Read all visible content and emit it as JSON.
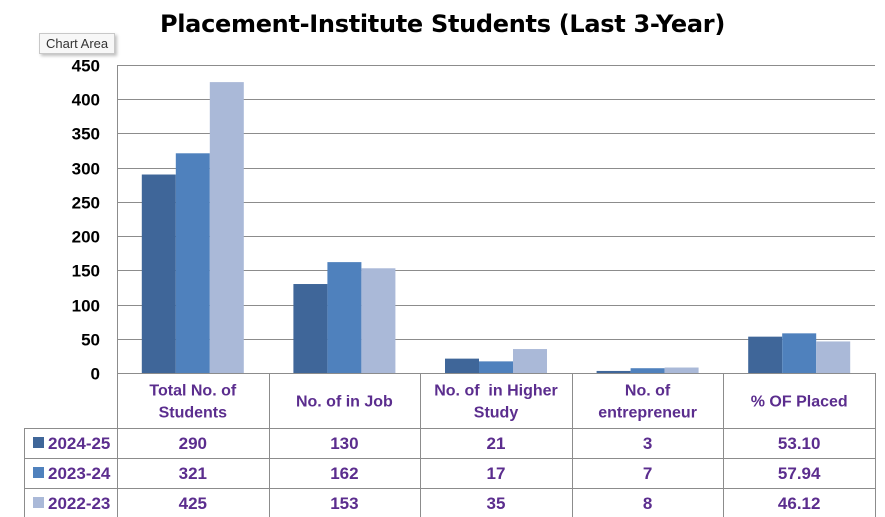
{
  "chart_area_tooltip": "Chart Area",
  "chart_data": {
    "type": "bar",
    "title": "Placement-Institute Students (Last 3-Year)",
    "categories": [
      [
        "Total No. of",
        "Students"
      ],
      [
        "No. of in Job"
      ],
      [
        "No. of  in Higher",
        "Study"
      ],
      [
        "No. of",
        "entrepreneur"
      ],
      [
        "% OF Placed"
      ]
    ],
    "series": [
      {
        "name": "2024-25",
        "color": "#3f6699",
        "values": [
          290,
          130,
          21,
          3,
          53.1
        ],
        "labels": [
          "290",
          "130",
          "21",
          "3",
          "53.10"
        ]
      },
      {
        "name": "2023-24",
        "color": "#4f81bd",
        "values": [
          321,
          162,
          17,
          7,
          57.94
        ],
        "labels": [
          "321",
          "162",
          "17",
          "7",
          "57.94"
        ]
      },
      {
        "name": "2022-23",
        "color": "#aab9d8",
        "values": [
          425,
          153,
          35,
          8,
          46.12
        ],
        "labels": [
          "425",
          "153",
          "35",
          "8",
          "46.12"
        ]
      }
    ],
    "ylim": [
      0,
      450
    ],
    "yticks": [
      0,
      50,
      100,
      150,
      200,
      250,
      300,
      350,
      400,
      450
    ],
    "grid": true,
    "legend": "data-table"
  }
}
